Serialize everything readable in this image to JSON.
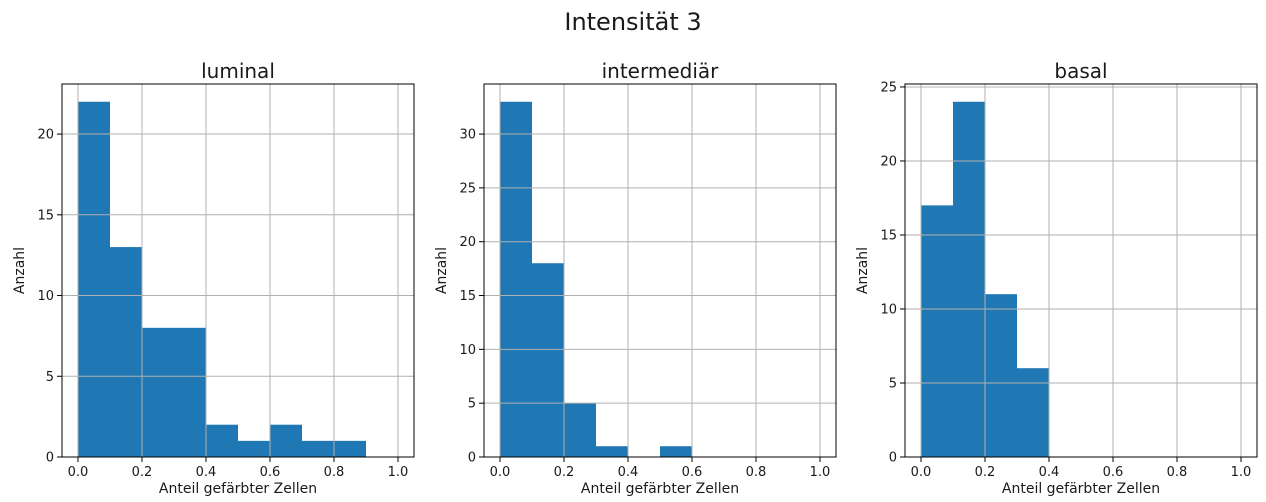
{
  "figure": {
    "title": "Intensität 3"
  },
  "chart_data": [
    {
      "type": "bar",
      "title": "luminal",
      "xlabel": "Anteil gefärbter Zellen",
      "ylabel": "Anzahl",
      "bin_edges": [
        0.0,
        0.1,
        0.2,
        0.3,
        0.4,
        0.5,
        0.6,
        0.7,
        0.8,
        0.9
      ],
      "values": [
        22,
        13,
        8,
        8,
        2,
        1,
        2,
        1,
        1
      ],
      "xlim": [
        -0.05,
        1.05
      ],
      "ylim": [
        0,
        23.1
      ],
      "xticks": [
        0.0,
        0.2,
        0.4,
        0.6,
        0.8,
        1.0
      ],
      "xtick_labels": [
        "0.0",
        "0.2",
        "0.4",
        "0.6",
        "0.8",
        "1.0"
      ],
      "yticks": [
        0,
        5,
        10,
        15,
        20
      ],
      "ytick_labels": [
        "0",
        "5",
        "10",
        "15",
        "20"
      ],
      "grid": true,
      "bar_color": "#1f77b4"
    },
    {
      "type": "bar",
      "title": "intermediär",
      "xlabel": "Anteil gefärbter Zellen",
      "ylabel": "Anzahl",
      "bin_edges": [
        0.0,
        0.1,
        0.2,
        0.3,
        0.4,
        0.5,
        0.6
      ],
      "values": [
        33,
        18,
        5,
        1,
        0,
        1
      ],
      "xlim": [
        -0.05,
        1.05
      ],
      "ylim": [
        0,
        34.65
      ],
      "xticks": [
        0.0,
        0.2,
        0.4,
        0.6,
        0.8,
        1.0
      ],
      "xtick_labels": [
        "0.0",
        "0.2",
        "0.4",
        "0.6",
        "0.8",
        "1.0"
      ],
      "yticks": [
        0,
        5,
        10,
        15,
        20,
        25,
        30
      ],
      "ytick_labels": [
        "0",
        "5",
        "10",
        "15",
        "20",
        "25",
        "30"
      ],
      "grid": true,
      "bar_color": "#1f77b4"
    },
    {
      "type": "bar",
      "title": "basal",
      "xlabel": "Anteil gefärbter Zellen",
      "ylabel": "Anzahl",
      "bin_edges": [
        0.0,
        0.1,
        0.2,
        0.3,
        0.4
      ],
      "values": [
        17,
        24,
        11,
        6
      ],
      "xlim": [
        -0.05,
        1.05
      ],
      "ylim": [
        0,
        25.2
      ],
      "xticks": [
        0.0,
        0.2,
        0.4,
        0.6,
        0.8,
        1.0
      ],
      "xtick_labels": [
        "0.0",
        "0.2",
        "0.4",
        "0.6",
        "0.8",
        "1.0"
      ],
      "yticks": [
        0,
        5,
        10,
        15,
        20,
        25
      ],
      "ytick_labels": [
        "0",
        "5",
        "10",
        "15",
        "20",
        "25"
      ],
      "grid": true,
      "bar_color": "#1f77b4"
    }
  ]
}
